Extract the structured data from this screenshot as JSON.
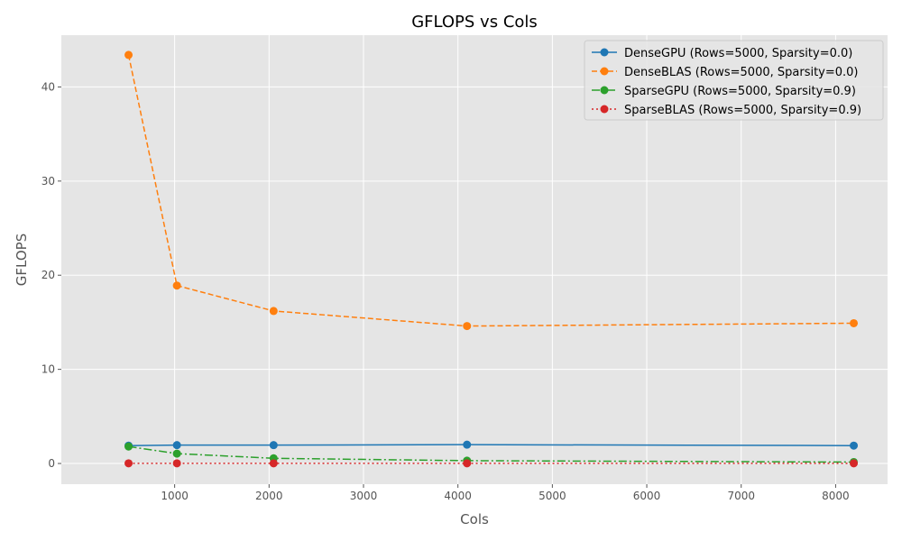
{
  "chart_data": {
    "type": "line",
    "title": "GFLOPS vs Cols",
    "xlabel": "Cols",
    "ylabel": "GFLOPS",
    "xlim": [
      -200,
      8550
    ],
    "ylim": [
      -2.2,
      45.5
    ],
    "xticks": [
      1000,
      2000,
      3000,
      4000,
      5000,
      6000,
      7000,
      8000
    ],
    "yticks": [
      0,
      10,
      20,
      30,
      40
    ],
    "grid": true,
    "legend_position": "top-right",
    "x": [
      512,
      1024,
      2048,
      4096,
      8192
    ],
    "series": [
      {
        "name": "DenseGPU (Rows=5000, Sparsity=0.0)",
        "values": [
          1.9,
          1.95,
          1.95,
          2.0,
          1.9
        ],
        "color": "#1f77b4",
        "dash": "solid"
      },
      {
        "name": "DenseBLAS (Rows=5000, Sparsity=0.0)",
        "values": [
          43.4,
          18.9,
          16.2,
          14.6,
          14.9
        ],
        "color": "#ff7f0e",
        "dash": "dashed"
      },
      {
        "name": "SparseGPU (Rows=5000, Sparsity=0.9)",
        "values": [
          1.8,
          1.05,
          0.55,
          0.3,
          0.15
        ],
        "color": "#2ca02c",
        "dash": "dashdot"
      },
      {
        "name": "SparseBLAS (Rows=5000, Sparsity=0.9)",
        "values": [
          0.02,
          0.02,
          0.02,
          0.02,
          0.02
        ],
        "color": "#d62728",
        "dash": "dotted"
      }
    ]
  }
}
